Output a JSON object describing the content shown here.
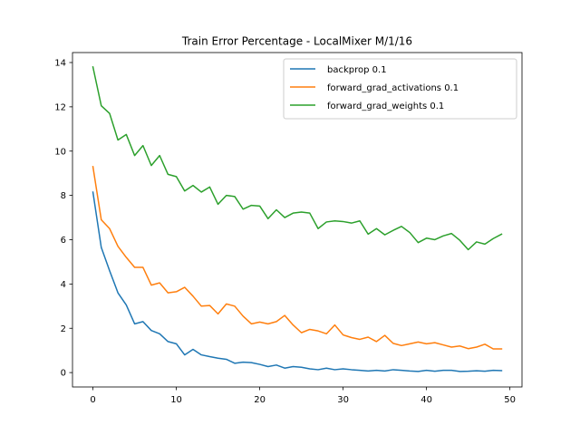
{
  "chart_data": {
    "type": "line",
    "title": "Train Error Percentage - LocalMixer M/1/16",
    "xlabel": "",
    "ylabel": "",
    "xlim": [
      -2.45,
      51.45
    ],
    "ylim": [
      -0.65,
      14.45
    ],
    "xticks": [
      0,
      10,
      20,
      30,
      40,
      50
    ],
    "yticks": [
      0,
      2,
      4,
      6,
      8,
      10,
      12,
      14
    ],
    "legend_position": "upper right",
    "grid": false,
    "x": [
      0,
      1,
      2,
      3,
      4,
      5,
      6,
      7,
      8,
      9,
      10,
      11,
      12,
      13,
      14,
      15,
      16,
      17,
      18,
      19,
      20,
      21,
      22,
      23,
      24,
      25,
      26,
      27,
      28,
      29,
      30,
      31,
      32,
      33,
      34,
      35,
      36,
      37,
      38,
      39,
      40,
      41,
      42,
      43,
      44,
      45,
      46,
      47,
      48,
      49
    ],
    "series": [
      {
        "name": "backprop 0.1",
        "color": "#1f77b4",
        "values": [
          8.15,
          5.65,
          4.6,
          3.6,
          3.05,
          2.2,
          2.3,
          1.9,
          1.75,
          1.4,
          1.3,
          0.8,
          1.05,
          0.8,
          0.72,
          0.65,
          0.6,
          0.42,
          0.47,
          0.45,
          0.37,
          0.27,
          0.34,
          0.2,
          0.27,
          0.24,
          0.17,
          0.13,
          0.2,
          0.13,
          0.17,
          0.13,
          0.1,
          0.07,
          0.1,
          0.07,
          0.13,
          0.1,
          0.07,
          0.05,
          0.1,
          0.06,
          0.1,
          0.1,
          0.05,
          0.06,
          0.08,
          0.06,
          0.1,
          0.09
        ]
      },
      {
        "name": "forward_grad_activations 0.1",
        "color": "#ff7f0e",
        "values": [
          9.3,
          6.9,
          6.5,
          5.7,
          5.2,
          4.75,
          4.75,
          3.95,
          4.05,
          3.6,
          3.65,
          3.85,
          3.45,
          3.0,
          3.03,
          2.65,
          3.1,
          3.0,
          2.55,
          2.2,
          2.28,
          2.2,
          2.3,
          2.58,
          2.15,
          1.8,
          1.95,
          1.88,
          1.75,
          2.15,
          1.7,
          1.58,
          1.5,
          1.6,
          1.4,
          1.68,
          1.32,
          1.22,
          1.3,
          1.38,
          1.3,
          1.35,
          1.25,
          1.15,
          1.2,
          1.08,
          1.15,
          1.28,
          1.07,
          1.07
        ]
      },
      {
        "name": "forward_grad_weights 0.1",
        "color": "#2ca02c",
        "values": [
          13.8,
          12.05,
          11.7,
          10.5,
          10.75,
          9.8,
          10.25,
          9.35,
          9.8,
          8.95,
          8.85,
          8.2,
          8.45,
          8.15,
          8.38,
          7.6,
          8.0,
          7.95,
          7.38,
          7.55,
          7.52,
          6.95,
          7.35,
          7.0,
          7.2,
          7.25,
          7.2,
          6.5,
          6.8,
          6.85,
          6.82,
          6.75,
          6.85,
          6.25,
          6.5,
          6.22,
          6.42,
          6.6,
          6.32,
          5.87,
          6.07,
          6.0,
          6.17,
          6.28,
          5.97,
          5.55,
          5.9,
          5.8,
          6.05,
          6.25
        ]
      }
    ]
  }
}
